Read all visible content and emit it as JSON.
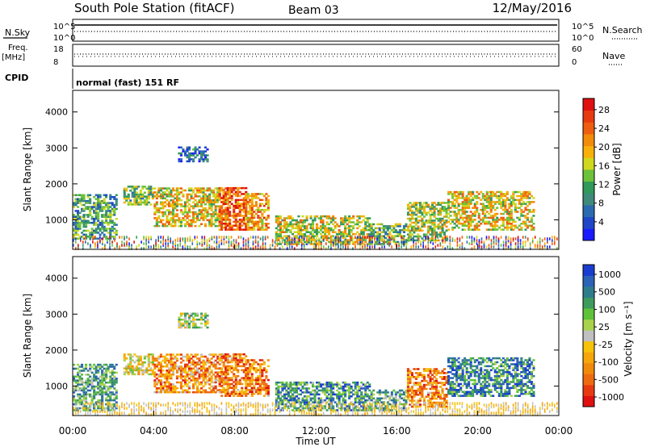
{
  "header": {
    "station": "South Pole Station (fitACF)",
    "beam": "Beam 03",
    "date": "12/May/2016"
  },
  "top_panels": {
    "nsky_label": "N.Sky",
    "nsearch_label": "N.Search",
    "freq_label": "Freq.",
    "freq_unit": "[MHz]",
    "nave_label": "Nave",
    "cpid_label": "CPID",
    "cpid_value": "normal (fast) 151 RF",
    "noise_ticks": [
      "10^5",
      "10^0"
    ],
    "freq_ticks": [
      "18",
      "8"
    ],
    "nave_ticks": [
      "60",
      "0"
    ]
  },
  "chart_data": [
    {
      "type": "heatmap",
      "name": "power",
      "ylabel": "Slant Range [km]",
      "xlabel": "",
      "ylim": [
        180,
        4600
      ],
      "xlim": [
        0,
        24
      ],
      "yticks": [
        "1000",
        "2000",
        "3000",
        "4000"
      ],
      "xticks": [
        "00:00",
        "04:00",
        "08:00",
        "12:00",
        "16:00",
        "20:00",
        "00:00"
      ],
      "colorbar": {
        "label": "Power [dB]",
        "ticks": [
          "4",
          "8",
          "12",
          "16",
          "20",
          "24",
          "28"
        ],
        "colors": [
          "#1a1aff",
          "#1f46c8",
          "#2c6ab0",
          "#3f8a7a",
          "#2f9a5a",
          "#6dc23a",
          "#cfd81f",
          "#f6b00a",
          "#f28a0a",
          "#ee5d10",
          "#e83a10",
          "#e01010"
        ]
      },
      "echo_regions": [
        {
          "t0": 0.0,
          "t1": 2.2,
          "r0": 450,
          "r1": 1700,
          "level": 0.35
        },
        {
          "t0": 2.5,
          "t1": 4.0,
          "r0": 1400,
          "r1": 1900,
          "level": 0.45
        },
        {
          "t0": 4.0,
          "t1": 7.6,
          "r0": 800,
          "r1": 1900,
          "level": 0.6
        },
        {
          "t0": 7.2,
          "t1": 8.5,
          "r0": 700,
          "r1": 1900,
          "level": 0.8
        },
        {
          "t0": 8.5,
          "t1": 9.6,
          "r0": 700,
          "r1": 1700,
          "level": 0.7
        },
        {
          "t0": 5.2,
          "t1": 6.6,
          "r0": 2600,
          "r1": 3000,
          "level": 0.2
        },
        {
          "t0": 10.0,
          "t1": 14.6,
          "r0": 300,
          "r1": 1100,
          "level": 0.55
        },
        {
          "t0": 14.6,
          "t1": 16.5,
          "r0": 300,
          "r1": 900,
          "level": 0.4
        },
        {
          "t0": 16.5,
          "t1": 18.5,
          "r0": 400,
          "r1": 1500,
          "level": 0.5
        },
        {
          "t0": 18.5,
          "t1": 22.8,
          "r0": 700,
          "r1": 1800,
          "level": 0.6
        }
      ]
    },
    {
      "type": "heatmap",
      "name": "velocity",
      "ylabel": "Slant Range [km]",
      "xlabel": "Time UT",
      "ylim": [
        180,
        4600
      ],
      "xlim": [
        0,
        24
      ],
      "yticks": [
        "1000",
        "2000",
        "3000",
        "4000"
      ],
      "xticks": [
        "00:00",
        "04:00",
        "08:00",
        "12:00",
        "16:00",
        "20:00",
        "00:00"
      ],
      "colorbar": {
        "label": "Velocity [m s⁻¹]",
        "ticks": [
          "1000",
          "500",
          "100",
          "25",
          "-25",
          "-100",
          "-500",
          "-1000"
        ],
        "colors": [
          "#1a3ccf",
          "#2c62b8",
          "#2f7d8c",
          "#3e9a5e",
          "#5fc23a",
          "#a8d24a",
          "#c0c0c0",
          "#f6c20a",
          "#f6a60a",
          "#f08a0a",
          "#ee6a10",
          "#e83a10",
          "#e01010"
        ]
      },
      "echo_regions": [
        {
          "t0": 0.0,
          "t1": 2.2,
          "r0": 300,
          "r1": 1600,
          "level": 0.3
        },
        {
          "t0": 2.5,
          "t1": 4.0,
          "r0": 1300,
          "r1": 1900,
          "level": 0.55
        },
        {
          "t0": 4.0,
          "t1": 7.6,
          "r0": 800,
          "r1": 1900,
          "level": 0.72
        },
        {
          "t0": 7.2,
          "t1": 8.5,
          "r0": 700,
          "r1": 1900,
          "level": 0.75
        },
        {
          "t0": 8.5,
          "t1": 9.6,
          "r0": 700,
          "r1": 1700,
          "level": 0.75
        },
        {
          "t0": 5.2,
          "t1": 6.6,
          "r0": 2600,
          "r1": 3000,
          "level": 0.42
        },
        {
          "t0": 10.0,
          "t1": 14.6,
          "r0": 300,
          "r1": 1100,
          "level": 0.25
        },
        {
          "t0": 14.6,
          "t1": 16.5,
          "r0": 300,
          "r1": 900,
          "level": 0.3
        },
        {
          "t0": 16.5,
          "t1": 18.5,
          "r0": 400,
          "r1": 1500,
          "level": 0.75
        },
        {
          "t0": 18.5,
          "t1": 22.8,
          "r0": 700,
          "r1": 1800,
          "level": 0.2
        }
      ]
    }
  ]
}
